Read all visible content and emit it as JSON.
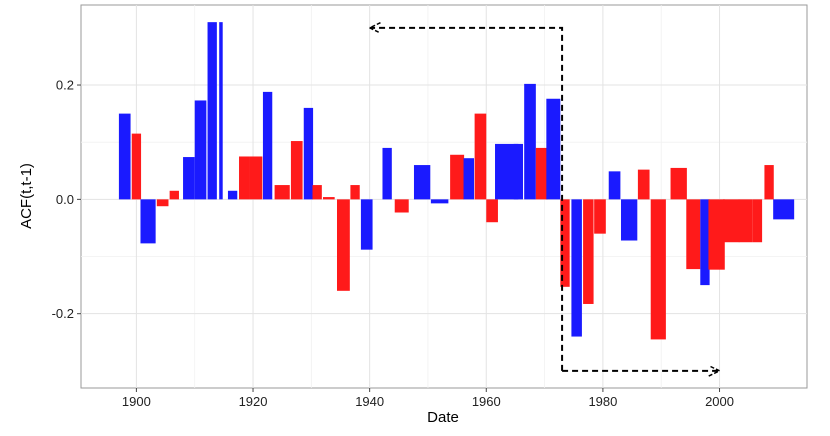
{
  "chart_data": {
    "type": "bar",
    "title": "",
    "xlabel": "Date",
    "ylabel": "ACF(t,t-1)",
    "xlim": [
      1890.5,
      2015
    ],
    "ylim": [
      -0.33,
      0.34
    ],
    "x_ticks": [
      1900,
      1920,
      1940,
      1960,
      1980,
      2000
    ],
    "y_ticks": [
      -0.2,
      0.0,
      0.2
    ],
    "y_tick_labels": [
      "-0.2",
      "0.0",
      "0.2"
    ],
    "grid": true,
    "legend": "none",
    "colors": {
      "blue": "#1a1aff",
      "red": "#ff1a1a"
    },
    "bars": [
      {
        "x": 1898,
        "value": 0.15,
        "color": "blue"
      },
      {
        "x": 1900,
        "value": 0.115,
        "color": "red"
      },
      {
        "x": 1902,
        "value": -0.077,
        "color": "blue"
      },
      {
        "x": 1904.5,
        "value": -0.012,
        "color": "red"
      },
      {
        "x": 1906.5,
        "value": 0.015,
        "color": "red"
      },
      {
        "x": 1909,
        "value": 0.074,
        "color": "blue"
      },
      {
        "x": 1911,
        "value": 0.173,
        "color": "blue"
      },
      {
        "x": 1913,
        "value": 0.31,
        "color": "blue"
      },
      {
        "x": 1914.5,
        "value": 0.31,
        "color": "blue"
      },
      {
        "x": 1916.5,
        "value": 0.015,
        "color": "blue"
      },
      {
        "x": 1918.5,
        "value": 0.075,
        "color": "red"
      },
      {
        "x": 1920.5,
        "value": 0.075,
        "color": "red"
      },
      {
        "x": 1922.5,
        "value": 0.188,
        "color": "blue"
      },
      {
        "x": 1925,
        "value": 0.025,
        "color": "red"
      },
      {
        "x": 1927.5,
        "value": 0.102,
        "color": "red"
      },
      {
        "x": 1929.5,
        "value": 0.16,
        "color": "blue"
      },
      {
        "x": 1931,
        "value": 0.025,
        "color": "red"
      },
      {
        "x": 1933,
        "value": 0.004,
        "color": "red"
      },
      {
        "x": 1935.5,
        "value": -0.16,
        "color": "red"
      },
      {
        "x": 1937.5,
        "value": 0.025,
        "color": "red"
      },
      {
        "x": 1939.5,
        "value": -0.088,
        "color": "blue"
      },
      {
        "x": 1943,
        "value": 0.09,
        "color": "blue"
      },
      {
        "x": 1945.5,
        "value": -0.023,
        "color": "red"
      },
      {
        "x": 1949,
        "value": 0.06,
        "color": "blue"
      },
      {
        "x": 1952,
        "value": -0.007,
        "color": "blue"
      },
      {
        "x": 1955,
        "value": 0.078,
        "color": "red"
      },
      {
        "x": 1957,
        "value": 0.072,
        "color": "blue"
      },
      {
        "x": 1959,
        "value": 0.15,
        "color": "red"
      },
      {
        "x": 1961,
        "value": -0.04,
        "color": "red"
      },
      {
        "x": 1963.5,
        "value": 0.097,
        "color": "blue"
      },
      {
        "x": 1965.5,
        "value": 0.097,
        "color": "blue"
      },
      {
        "x": 1967.5,
        "value": 0.202,
        "color": "blue"
      },
      {
        "x": 1969.5,
        "value": 0.09,
        "color": "red"
      },
      {
        "x": 1971.5,
        "value": 0.176,
        "color": "blue"
      },
      {
        "x": 1973.5,
        "value": -0.153,
        "color": "red"
      },
      {
        "x": 1975.5,
        "value": -0.24,
        "color": "blue"
      },
      {
        "x": 1977.5,
        "value": -0.183,
        "color": "red"
      },
      {
        "x": 1979.5,
        "value": -0.06,
        "color": "red"
      },
      {
        "x": 1982,
        "value": 0.049,
        "color": "blue"
      },
      {
        "x": 1984.5,
        "value": -0.072,
        "color": "blue"
      },
      {
        "x": 1987,
        "value": 0.052,
        "color": "red"
      },
      {
        "x": 1989.5,
        "value": -0.245,
        "color": "red"
      },
      {
        "x": 1993,
        "value": 0.055,
        "color": "red"
      },
      {
        "x": 1995.5,
        "value": -0.122,
        "color": "red"
      },
      {
        "x": 1997.5,
        "value": -0.15,
        "color": "blue"
      },
      {
        "x": 1999.5,
        "value": -0.123,
        "color": "red"
      },
      {
        "x": 2002,
        "value": -0.075,
        "color": "red"
      },
      {
        "x": 2004.5,
        "value": -0.075,
        "color": "red"
      },
      {
        "x": 2006.5,
        "value": -0.075,
        "color": "red"
      },
      {
        "x": 2008.5,
        "value": 0.06,
        "color": "red"
      },
      {
        "x": 2011,
        "value": -0.035,
        "color": "blue"
      }
    ],
    "bar_widths": [
      2,
      1.6,
      2.6,
      2,
      1.6,
      2,
      2,
      1.6,
      0.6,
      1.6,
      1.8,
      2.2,
      1.6,
      2.6,
      2,
      1.6,
      1.6,
      2,
      2.2,
      1.6,
      2,
      1.6,
      2.4,
      2.8,
      3,
      2.4,
      1.8,
      2,
      2,
      4,
      1.6,
      2,
      2,
      2.4,
      1.6,
      1.8,
      1.8,
      2,
      2,
      2.8,
      2,
      2.6,
      2.8,
      2.4,
      1.6,
      2.8,
      2.8,
      2.4,
      1.6,
      1.6,
      3.6
    ],
    "annotations": [
      {
        "type": "dashed-arrow",
        "path": [
          [
            1973,
            -0.3
          ],
          [
            1973,
            0.3
          ],
          [
            1940,
            0.3
          ]
        ]
      },
      {
        "type": "dashed-arrow",
        "path": [
          [
            1973,
            -0.3
          ],
          [
            2000,
            -0.3
          ]
        ]
      }
    ]
  }
}
